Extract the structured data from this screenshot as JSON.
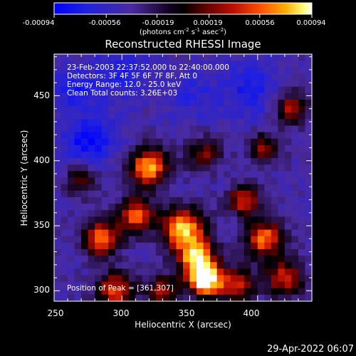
{
  "colorbar": {
    "tick_labels": [
      "-0.00094",
      "-0.00056",
      "-0.00019",
      "0.00019",
      "0.00056",
      "0.00094"
    ],
    "units_prefix": "(photons cm",
    "units_exp1": "-2",
    "units_mid": " s",
    "units_exp2": "-1",
    "units_mid2": " asec",
    "units_exp3": "-2",
    "units_suffix": ")"
  },
  "plot": {
    "title": "Reconstructed RHESSI Image",
    "info_lines": [
      "23-Feb-2003 22:37:52.000 to 22:40:00.000",
      "Detectors: 3F 4F 5F 6F 7F 8F, Att 0",
      "Energy Range: 12.0 - 25.0 keV",
      "Clean     Total counts: 3.26E+03"
    ],
    "peak_label": "Position of Peak = [361,307]",
    "x_axis_label": "Heliocentric X (arcsec)",
    "y_axis_label": "Heliocentric Y (arcsec)",
    "x_tick_labels": [
      "250",
      "300",
      "350",
      "400"
    ],
    "y_tick_labels": [
      "300",
      "350",
      "400",
      "450"
    ]
  },
  "footer": {
    "timestamp": "29-Apr-2022 06:07"
  },
  "colors": {
    "background": "#000000",
    "foreground": "#ffffff",
    "colormap_low": "#0000ff",
    "colormap_mid": "#000000",
    "colormap_high": "#ffffff"
  },
  "chart_data": {
    "type": "heatmap",
    "title": "Reconstructed RHESSI Image",
    "xlabel": "Heliocentric X (arcsec)",
    "ylabel": "Heliocentric Y (arcsec)",
    "xlim": [
      250,
      440
    ],
    "ylim": [
      292,
      482
    ],
    "x_ticks": [
      250,
      300,
      350,
      400
    ],
    "y_ticks": [
      300,
      350,
      400,
      450
    ],
    "colorbar_range": [
      -0.00094,
      0.00094
    ],
    "colorbar_ticks": [
      -0.00094,
      -0.00056,
      -0.00019,
      0.00019,
      0.00056,
      0.00094
    ],
    "peak_position": [
      361,
      307
    ],
    "grid_size": 38,
    "sources": [
      {
        "x": 362,
        "y": 308,
        "amp": 1.0,
        "sigma": 9
      },
      {
        "x": 345,
        "y": 348,
        "amp": 0.85,
        "sigma": 11
      },
      {
        "x": 355,
        "y": 325,
        "amp": 0.8,
        "sigma": 10
      },
      {
        "x": 320,
        "y": 395,
        "amp": 0.8,
        "sigma": 10
      },
      {
        "x": 310,
        "y": 358,
        "amp": 0.7,
        "sigma": 9
      },
      {
        "x": 285,
        "y": 340,
        "amp": 0.75,
        "sigma": 9
      },
      {
        "x": 295,
        "y": 300,
        "amp": 0.6,
        "sigma": 10
      },
      {
        "x": 405,
        "y": 340,
        "amp": 0.7,
        "sigma": 10
      },
      {
        "x": 390,
        "y": 370,
        "amp": 0.6,
        "sigma": 8
      },
      {
        "x": 420,
        "y": 310,
        "amp": 0.55,
        "sigma": 10
      },
      {
        "x": 425,
        "y": 440,
        "amp": 0.5,
        "sigma": 9
      },
      {
        "x": 360,
        "y": 405,
        "amp": 0.4,
        "sigma": 9
      },
      {
        "x": 270,
        "y": 385,
        "amp": 0.4,
        "sigma": 8
      },
      {
        "x": 405,
        "y": 410,
        "amp": 0.45,
        "sigma": 8
      },
      {
        "x": 330,
        "y": 300,
        "amp": 0.5,
        "sigma": 8
      },
      {
        "x": 385,
        "y": 305,
        "amp": 0.55,
        "sigma": 9
      }
    ],
    "negative_sources": [
      {
        "x": 275,
        "y": 415,
        "amp": 0.5,
        "sigma": 14
      },
      {
        "x": 395,
        "y": 455,
        "amp": 0.35,
        "sigma": 16
      },
      {
        "x": 300,
        "y": 470,
        "amp": 0.3,
        "sigma": 16
      },
      {
        "x": 265,
        "y": 455,
        "amp": 0.35,
        "sigma": 12
      },
      {
        "x": 350,
        "y": 450,
        "amp": 0.25,
        "sigma": 14
      }
    ]
  }
}
